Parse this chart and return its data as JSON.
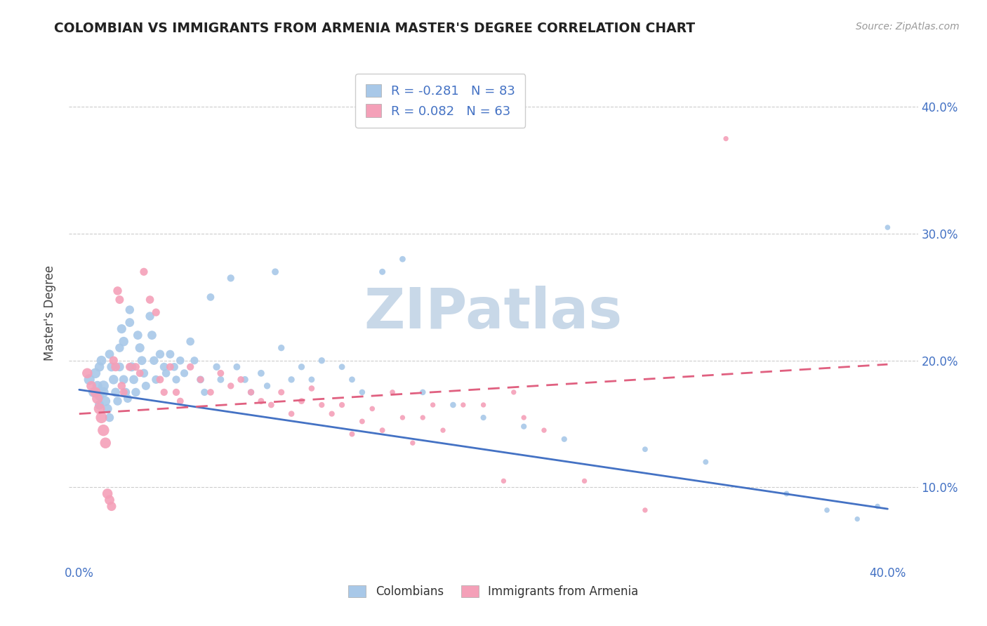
{
  "title": "COLOMBIAN VS IMMIGRANTS FROM ARMENIA MASTER'S DEGREE CORRELATION CHART",
  "source": "Source: ZipAtlas.com",
  "ylabel": "Master's Degree",
  "ytick_labels": [
    "10.0%",
    "20.0%",
    "30.0%",
    "40.0%"
  ],
  "ytick_values": [
    0.1,
    0.2,
    0.3,
    0.4
  ],
  "xtick_labels": [
    "0.0%",
    "",
    "",
    "",
    "40.0%"
  ],
  "xtick_values": [
    0.0,
    0.1,
    0.2,
    0.3,
    0.4
  ],
  "xlim": [
    -0.005,
    0.415
  ],
  "ylim": [
    0.04,
    0.435
  ],
  "legend_label1": "Colombians",
  "legend_label2": "Immigrants from Armenia",
  "R1": -0.281,
  "N1": 83,
  "R2": 0.082,
  "N2": 63,
  "color_blue": "#a8c8e8",
  "color_pink": "#f4a0b8",
  "trend_color_blue": "#4472c4",
  "trend_color_pink": "#e06080",
  "title_color": "#222222",
  "axis_label_color": "#4472c4",
  "watermark_color": "#c8d8e8",
  "background_color": "#ffffff",
  "colombians_x": [
    0.005,
    0.007,
    0.008,
    0.009,
    0.01,
    0.01,
    0.01,
    0.011,
    0.012,
    0.012,
    0.013,
    0.014,
    0.015,
    0.015,
    0.016,
    0.017,
    0.018,
    0.019,
    0.02,
    0.02,
    0.021,
    0.022,
    0.022,
    0.023,
    0.024,
    0.025,
    0.025,
    0.026,
    0.027,
    0.028,
    0.029,
    0.03,
    0.031,
    0.032,
    0.033,
    0.035,
    0.036,
    0.037,
    0.038,
    0.04,
    0.042,
    0.043,
    0.045,
    0.047,
    0.048,
    0.05,
    0.052,
    0.055,
    0.057,
    0.06,
    0.062,
    0.065,
    0.068,
    0.07,
    0.075,
    0.078,
    0.082,
    0.085,
    0.09,
    0.093,
    0.097,
    0.1,
    0.105,
    0.11,
    0.115,
    0.12,
    0.13,
    0.135,
    0.14,
    0.15,
    0.16,
    0.17,
    0.185,
    0.2,
    0.22,
    0.24,
    0.28,
    0.31,
    0.35,
    0.37,
    0.385,
    0.395,
    0.4
  ],
  "colombians_y": [
    0.185,
    0.175,
    0.19,
    0.18,
    0.172,
    0.165,
    0.195,
    0.2,
    0.18,
    0.175,
    0.168,
    0.162,
    0.155,
    0.205,
    0.195,
    0.185,
    0.175,
    0.168,
    0.21,
    0.195,
    0.225,
    0.215,
    0.185,
    0.175,
    0.17,
    0.24,
    0.23,
    0.195,
    0.185,
    0.175,
    0.22,
    0.21,
    0.2,
    0.19,
    0.18,
    0.235,
    0.22,
    0.2,
    0.185,
    0.205,
    0.195,
    0.19,
    0.205,
    0.195,
    0.185,
    0.2,
    0.19,
    0.215,
    0.2,
    0.185,
    0.175,
    0.25,
    0.195,
    0.185,
    0.265,
    0.195,
    0.185,
    0.175,
    0.19,
    0.18,
    0.27,
    0.21,
    0.185,
    0.195,
    0.185,
    0.2,
    0.195,
    0.185,
    0.175,
    0.27,
    0.28,
    0.175,
    0.165,
    0.155,
    0.148,
    0.138,
    0.13,
    0.12,
    0.095,
    0.082,
    0.075,
    0.085,
    0.305
  ],
  "colombians_size": [
    120,
    100,
    110,
    105,
    90,
    90,
    95,
    100,
    120,
    110,
    100,
    90,
    80,
    85,
    90,
    95,
    85,
    80,
    80,
    85,
    90,
    95,
    85,
    80,
    75,
    80,
    85,
    90,
    85,
    80,
    85,
    90,
    85,
    80,
    75,
    80,
    85,
    80,
    75,
    80,
    75,
    70,
    75,
    70,
    65,
    70,
    65,
    70,
    65,
    60,
    55,
    60,
    55,
    50,
    55,
    50,
    50,
    45,
    50,
    45,
    50,
    45,
    45,
    45,
    40,
    45,
    40,
    40,
    38,
    42,
    40,
    38,
    38,
    35,
    35,
    35,
    32,
    32,
    32,
    30,
    28,
    30,
    30
  ],
  "armenia_x": [
    0.004,
    0.006,
    0.008,
    0.009,
    0.01,
    0.011,
    0.012,
    0.013,
    0.014,
    0.015,
    0.016,
    0.017,
    0.018,
    0.019,
    0.02,
    0.021,
    0.022,
    0.025,
    0.028,
    0.03,
    0.032,
    0.035,
    0.038,
    0.04,
    0.042,
    0.045,
    0.048,
    0.05,
    0.055,
    0.06,
    0.065,
    0.07,
    0.075,
    0.08,
    0.085,
    0.09,
    0.095,
    0.1,
    0.105,
    0.11,
    0.115,
    0.12,
    0.125,
    0.13,
    0.135,
    0.14,
    0.145,
    0.15,
    0.155,
    0.16,
    0.165,
    0.17,
    0.175,
    0.18,
    0.19,
    0.2,
    0.21,
    0.215,
    0.22,
    0.23,
    0.25,
    0.28,
    0.32
  ],
  "armenia_y": [
    0.19,
    0.18,
    0.175,
    0.17,
    0.162,
    0.155,
    0.145,
    0.135,
    0.095,
    0.09,
    0.085,
    0.2,
    0.195,
    0.255,
    0.248,
    0.18,
    0.175,
    0.195,
    0.195,
    0.19,
    0.27,
    0.248,
    0.238,
    0.185,
    0.175,
    0.195,
    0.175,
    0.168,
    0.195,
    0.185,
    0.175,
    0.19,
    0.18,
    0.185,
    0.175,
    0.168,
    0.165,
    0.175,
    0.158,
    0.168,
    0.178,
    0.165,
    0.158,
    0.165,
    0.142,
    0.152,
    0.162,
    0.145,
    0.175,
    0.155,
    0.135,
    0.155,
    0.165,
    0.145,
    0.165,
    0.165,
    0.105,
    0.175,
    0.155,
    0.145,
    0.105,
    0.082,
    0.375
  ],
  "armenia_size": [
    110,
    100,
    115,
    120,
    130,
    135,
    140,
    125,
    110,
    100,
    90,
    80,
    85,
    80,
    75,
    70,
    65,
    70,
    65,
    60,
    65,
    70,
    65,
    60,
    55,
    60,
    55,
    50,
    55,
    50,
    48,
    50,
    45,
    48,
    45,
    42,
    40,
    42,
    38,
    40,
    38,
    35,
    35,
    35,
    32,
    32,
    30,
    32,
    30,
    28,
    28,
    28,
    28,
    28,
    28,
    28,
    28,
    28,
    28,
    28,
    28,
    28,
    28
  ],
  "trend_blue_x0": 0.0,
  "trend_blue_y0": 0.177,
  "trend_blue_x1": 0.4,
  "trend_blue_y1": 0.083,
  "trend_pink_x0": 0.0,
  "trend_pink_y0": 0.158,
  "trend_pink_x1": 0.4,
  "trend_pink_y1": 0.197
}
